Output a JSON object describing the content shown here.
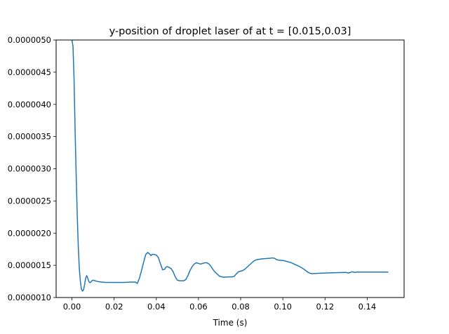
{
  "chart_data": {
    "type": "line",
    "title": "y-position of droplet laser of at t = [0.015,0.03]",
    "xlabel": "Time (s)",
    "ylabel": "",
    "xlim": [
      -0.0075,
      0.1575
    ],
    "ylim": [
      1e-06,
      5e-06
    ],
    "x_ticks": [
      0.0,
      0.02,
      0.04,
      0.06,
      0.08,
      0.1,
      0.12,
      0.14
    ],
    "x_tick_labels": [
      "0.00",
      "0.02",
      "0.04",
      "0.06",
      "0.08",
      "0.10",
      "0.12",
      "0.14"
    ],
    "y_ticks": [
      1e-06,
      1.5e-06,
      2e-06,
      2.5e-06,
      3e-06,
      3.5e-06,
      4e-06,
      4.5e-06,
      5e-06
    ],
    "y_tick_labels": [
      "0.0000010",
      "0.0000015",
      "0.0000020",
      "0.0000025",
      "0.0000030",
      "0.0000035",
      "0.0000040",
      "0.0000045",
      "0.0000050"
    ],
    "grid": false,
    "series": [
      {
        "color": "#1f77b4",
        "x": [
          0.0,
          0.0005,
          0.001,
          0.0015,
          0.002,
          0.0025,
          0.003,
          0.0035,
          0.004,
          0.0045,
          0.005,
          0.0055,
          0.006,
          0.0065,
          0.007,
          0.0075,
          0.008,
          0.0085,
          0.009,
          0.0095,
          0.01,
          0.011,
          0.012,
          0.014,
          0.016,
          0.02,
          0.025,
          0.028,
          0.03,
          0.031,
          0.032,
          0.033,
          0.034,
          0.035,
          0.036,
          0.037,
          0.0375,
          0.038,
          0.039,
          0.04,
          0.041,
          0.042,
          0.043,
          0.044,
          0.0445,
          0.045,
          0.046,
          0.047,
          0.048,
          0.049,
          0.05,
          0.051,
          0.052,
          0.053,
          0.054,
          0.055,
          0.056,
          0.057,
          0.058,
          0.059,
          0.06,
          0.061,
          0.062,
          0.063,
          0.064,
          0.065,
          0.066,
          0.067,
          0.068,
          0.069,
          0.07,
          0.072,
          0.074,
          0.076,
          0.077,
          0.078,
          0.079,
          0.08,
          0.081,
          0.082,
          0.083,
          0.084,
          0.085,
          0.086,
          0.087,
          0.088,
          0.09,
          0.092,
          0.094,
          0.095,
          0.096,
          0.097,
          0.098,
          0.1,
          0.102,
          0.104,
          0.106,
          0.108,
          0.11,
          0.112,
          0.113,
          0.114,
          0.116,
          0.12,
          0.125,
          0.13,
          0.131,
          0.132,
          0.133,
          0.134,
          0.135,
          0.14,
          0.15
        ],
        "y": [
          5e-06,
          4.9e-06,
          4.4e-06,
          3.6e-06,
          2.9e-06,
          2.3e-06,
          1.8e-06,
          1.45e-06,
          1.25e-06,
          1.13e-06,
          1.1e-06,
          1.12e-06,
          1.2e-06,
          1.3e-06,
          1.34e-06,
          1.3e-06,
          1.25e-06,
          1.23e-06,
          1.24e-06,
          1.26e-06,
          1.27e-06,
          1.26e-06,
          1.25e-06,
          1.24e-06,
          1.235e-06,
          1.235e-06,
          1.235e-06,
          1.24e-06,
          1.24e-06,
          1.22e-06,
          1.3e-06,
          1.42e-06,
          1.55e-06,
          1.67e-06,
          1.7e-06,
          1.67e-06,
          1.65e-06,
          1.67e-06,
          1.67e-06,
          1.66e-06,
          1.62e-06,
          1.52e-06,
          1.43e-06,
          1.44e-06,
          1.47e-06,
          1.48e-06,
          1.47e-06,
          1.45e-06,
          1.4e-06,
          1.32e-06,
          1.27e-06,
          1.26e-06,
          1.26e-06,
          1.26e-06,
          1.28e-06,
          1.34e-06,
          1.42e-06,
          1.48e-06,
          1.52e-06,
          1.54e-06,
          1.53e-06,
          1.52e-06,
          1.53e-06,
          1.54e-06,
          1.54e-06,
          1.52e-06,
          1.48e-06,
          1.43e-06,
          1.39e-06,
          1.36e-06,
          1.33e-06,
          1.315e-06,
          1.32e-06,
          1.32e-06,
          1.33e-06,
          1.37e-06,
          1.4e-06,
          1.41e-06,
          1.42e-06,
          1.44e-06,
          1.47e-06,
          1.5e-06,
          1.53e-06,
          1.56e-06,
          1.58e-06,
          1.59e-06,
          1.6e-06,
          1.605e-06,
          1.61e-06,
          1.615e-06,
          1.61e-06,
          1.59e-06,
          1.58e-06,
          1.575e-06,
          1.56e-06,
          1.54e-06,
          1.51e-06,
          1.48e-06,
          1.44e-06,
          1.39e-06,
          1.375e-06,
          1.37e-06,
          1.375e-06,
          1.38e-06,
          1.385e-06,
          1.39e-06,
          1.38e-06,
          1.39e-06,
          1.4e-06,
          1.39e-06,
          1.395e-06,
          1.395e-06,
          1.395e-06
        ]
      }
    ]
  }
}
